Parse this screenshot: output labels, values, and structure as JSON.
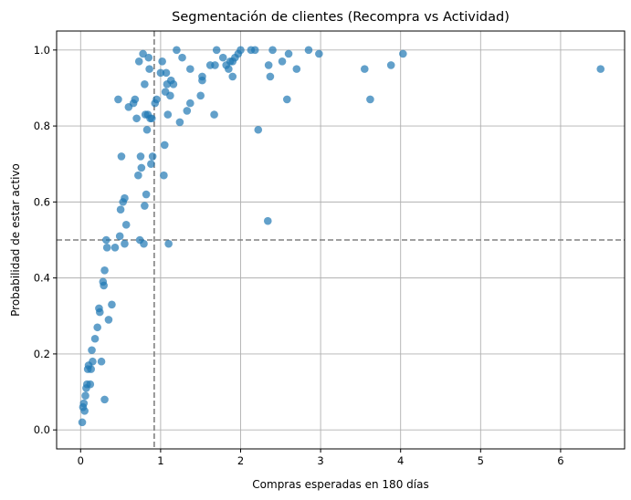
{
  "chart_data": {
    "type": "scatter",
    "title": "Segmentación de clientes (Recompra vs Actividad)",
    "xlabel": "Compras esperadas en 180 días",
    "ylabel": "Probabilidad de estar activo",
    "xlim": [
      -0.3,
      6.8
    ],
    "ylim": [
      -0.05,
      1.05
    ],
    "xticks": [
      0,
      1,
      2,
      3,
      4,
      5,
      6
    ],
    "xtick_labels": [
      "0",
      "1",
      "2",
      "3",
      "4",
      "5",
      "6"
    ],
    "yticks": [
      0.0,
      0.2,
      0.4,
      0.6,
      0.8,
      1.0
    ],
    "ytick_labels": [
      "0.0",
      "0.2",
      "0.4",
      "0.6",
      "0.8",
      "1.0"
    ],
    "grid": true,
    "colors": {
      "points": "#1f77b4",
      "reference_lines": "#808080",
      "grid": "#b0b0b0"
    },
    "reference_lines": {
      "vertical_x": 0.92,
      "horizontal_y": 0.5
    },
    "x": [
      0.02,
      0.03,
      0.04,
      0.05,
      0.06,
      0.07,
      0.08,
      0.09,
      0.1,
      0.12,
      0.13,
      0.14,
      0.15,
      0.18,
      0.21,
      0.23,
      0.24,
      0.26,
      0.28,
      0.29,
      0.3,
      0.3,
      0.32,
      0.33,
      0.35,
      0.39,
      0.43,
      0.47,
      0.49,
      0.5,
      0.51,
      0.53,
      0.55,
      0.55,
      0.57,
      0.6,
      0.66,
      0.68,
      0.7,
      0.72,
      0.73,
      0.74,
      0.75,
      0.76,
      0.78,
      0.79,
      0.8,
      0.8,
      0.81,
      0.82,
      0.83,
      0.84,
      0.85,
      0.86,
      0.87,
      0.88,
      0.89,
      0.9,
      0.93,
      0.95,
      1.0,
      1.02,
      1.04,
      1.05,
      1.06,
      1.07,
      1.08,
      1.09,
      1.1,
      1.12,
      1.13,
      1.16,
      1.2,
      1.24,
      1.27,
      1.33,
      1.37,
      1.37,
      1.5,
      1.52,
      1.52,
      1.62,
      1.67,
      1.68,
      1.7,
      1.78,
      1.82,
      1.85,
      1.87,
      1.9,
      1.9,
      1.93,
      1.97,
      2.0,
      2.13,
      2.18,
      2.22,
      2.34,
      2.35,
      2.37,
      2.4,
      2.52,
      2.58,
      2.6,
      2.7,
      2.85,
      2.98,
      3.55,
      3.62,
      3.88,
      4.03,
      6.5
    ],
    "y": [
      0.02,
      0.06,
      0.07,
      0.05,
      0.09,
      0.11,
      0.12,
      0.16,
      0.17,
      0.12,
      0.16,
      0.21,
      0.18,
      0.24,
      0.27,
      0.32,
      0.31,
      0.18,
      0.39,
      0.38,
      0.42,
      0.08,
      0.5,
      0.48,
      0.29,
      0.33,
      0.48,
      0.87,
      0.51,
      0.58,
      0.72,
      0.6,
      0.61,
      0.49,
      0.54,
      0.85,
      0.86,
      0.87,
      0.82,
      0.67,
      0.97,
      0.5,
      0.72,
      0.69,
      0.99,
      0.49,
      0.91,
      0.59,
      0.83,
      0.62,
      0.79,
      0.83,
      0.98,
      0.95,
      0.82,
      0.7,
      0.82,
      0.72,
      0.86,
      0.87,
      0.94,
      0.97,
      0.67,
      0.75,
      0.89,
      0.94,
      0.91,
      0.83,
      0.49,
      0.88,
      0.92,
      0.91,
      1.0,
      0.81,
      0.98,
      0.84,
      0.86,
      0.95,
      0.88,
      0.92,
      0.93,
      0.96,
      0.83,
      0.96,
      1.0,
      0.98,
      0.96,
      0.95,
      0.97,
      0.97,
      0.93,
      0.98,
      0.99,
      1.0,
      1.0,
      1.0,
      0.79,
      0.55,
      0.96,
      0.93,
      1.0,
      0.97,
      0.87,
      0.99,
      0.95,
      1.0,
      0.99,
      0.95,
      0.87,
      0.96,
      0.99,
      0.95
    ]
  }
}
